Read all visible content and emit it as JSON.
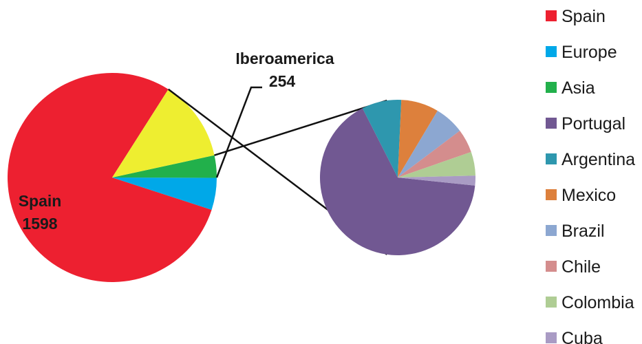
{
  "chart_data": [
    {
      "type": "pie",
      "slices": [
        {
          "name": "Spain",
          "value": 1598,
          "color": "#ED2030"
        },
        {
          "name": "Europe",
          "value": 100,
          "color": "#00A8E8"
        },
        {
          "name": "Asia",
          "value": 70,
          "color": "#22B04B"
        },
        {
          "name": "Iberoamerica",
          "value": 254,
          "color": "#EEEE30"
        }
      ],
      "labels": {
        "spain_name": "Spain",
        "spain_value": "1598",
        "ibero_name": "Iberoamerica",
        "ibero_value": "254"
      }
    },
    {
      "type": "pie",
      "slices": [
        {
          "name": "Portugal",
          "value": 160,
          "color": "#715892"
        },
        {
          "name": "Argentina",
          "value": 20,
          "color": "#2E97AE"
        },
        {
          "name": "Mexico",
          "value": 19,
          "color": "#DD803C"
        },
        {
          "name": "Brazil",
          "value": 15,
          "color": "#8CA7D1"
        },
        {
          "name": "Chile",
          "value": 12,
          "color": "#D48D8D"
        },
        {
          "name": "Colombia",
          "value": 12,
          "color": "#AFCD94"
        },
        {
          "name": "Cuba",
          "value": 5,
          "color": "#A99BC4"
        }
      ]
    }
  ],
  "legend": [
    {
      "label": "Spain",
      "color": "#ED2030"
    },
    {
      "label": "Europe",
      "color": "#00A8E8"
    },
    {
      "label": "Asia",
      "color": "#22B04B"
    },
    {
      "label": "Portugal",
      "color": "#715892"
    },
    {
      "label": "Argentina",
      "color": "#2E97AE"
    },
    {
      "label": "Mexico",
      "color": "#DD803C"
    },
    {
      "label": "Brazil",
      "color": "#8CA7D1"
    },
    {
      "label": "Chile",
      "color": "#D48D8D"
    },
    {
      "label": "Colombia",
      "color": "#AFCD94"
    },
    {
      "label": "Cuba",
      "color": "#A99BC4"
    }
  ]
}
